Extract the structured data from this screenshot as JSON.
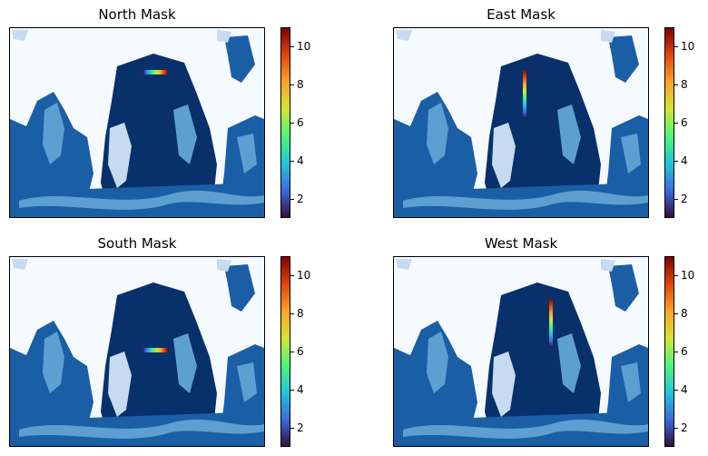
{
  "colors": {
    "land": "#f5faff",
    "ocean_dark": "#08306b",
    "ocean_mid": "#1a5ea6",
    "ocean_light": "#5d9fd1",
    "ocean_pale": "#c6dbef",
    "mask_colormap": [
      "#30123b",
      "#3e6bdf",
      "#1fc7da",
      "#4ef57a",
      "#d2e635",
      "#fba32a",
      "#e3440c",
      "#7a0403"
    ]
  },
  "icons": [
    "colorbar"
  ],
  "chart_data": [
    {
      "type": "heatmap",
      "title": "North Mask",
      "colorbar_range": [
        1,
        11
      ],
      "colorbar_ticks": [
        "2",
        "4",
        "6",
        "8",
        "10"
      ],
      "mask_orientation": "horizontal",
      "mask_values": [
        1,
        11
      ]
    },
    {
      "type": "heatmap",
      "title": "East Mask",
      "colorbar_range": [
        1,
        11
      ],
      "colorbar_ticks": [
        "2",
        "4",
        "6",
        "8",
        "10"
      ],
      "mask_orientation": "vertical",
      "mask_values": [
        1,
        11
      ]
    },
    {
      "type": "heatmap",
      "title": "South Mask",
      "colorbar_range": [
        1,
        11
      ],
      "colorbar_ticks": [
        "2",
        "4",
        "6",
        "8",
        "10"
      ],
      "mask_orientation": "horizontal",
      "mask_values": [
        1,
        11
      ]
    },
    {
      "type": "heatmap",
      "title": "West Mask",
      "colorbar_range": [
        1,
        11
      ],
      "colorbar_ticks": [
        "2",
        "4",
        "6",
        "8",
        "10"
      ],
      "mask_orientation": "vertical",
      "mask_values": [
        1,
        11
      ]
    }
  ]
}
